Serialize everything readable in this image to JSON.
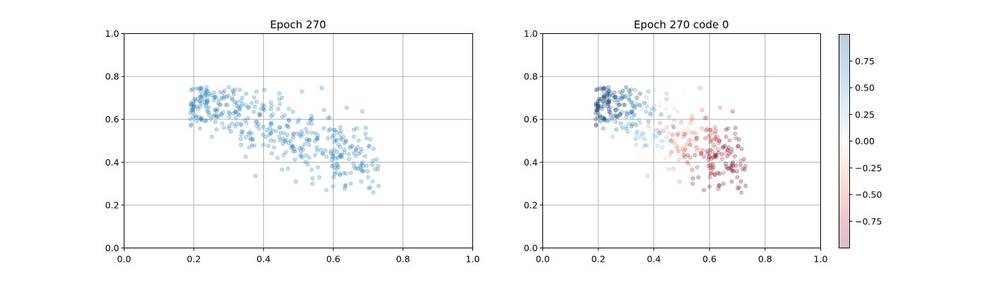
{
  "chart_data": [
    {
      "type": "scatter",
      "title": "Epoch 270",
      "xlim": [
        0,
        1
      ],
      "ylim": [
        0,
        1
      ],
      "xticks": [
        "0.0",
        "0.2",
        "0.4",
        "0.6",
        "0.8",
        "1.0"
      ],
      "yticks": [
        "0.0",
        "0.2",
        "0.4",
        "0.6",
        "0.8",
        "1.0"
      ],
      "grid": true,
      "marker_color": "#1f77b4",
      "marker_alpha": 0.25,
      "points_count": 400,
      "cluster_description_points": [
        [
          0.19,
          0.63
        ],
        [
          0.21,
          0.66
        ],
        [
          0.22,
          0.6
        ],
        [
          0.24,
          0.69
        ],
        [
          0.26,
          0.62
        ],
        [
          0.28,
          0.7
        ],
        [
          0.3,
          0.75
        ],
        [
          0.31,
          0.58
        ],
        [
          0.33,
          0.65
        ],
        [
          0.35,
          0.72
        ],
        [
          0.36,
          0.54
        ],
        [
          0.38,
          0.73
        ],
        [
          0.4,
          0.48
        ],
        [
          0.41,
          0.55
        ],
        [
          0.43,
          0.47
        ],
        [
          0.44,
          0.42
        ],
        [
          0.46,
          0.5
        ],
        [
          0.47,
          0.37
        ],
        [
          0.49,
          0.45
        ],
        [
          0.51,
          0.73
        ],
        [
          0.52,
          0.4
        ],
        [
          0.54,
          0.3
        ],
        [
          0.56,
          0.33
        ],
        [
          0.58,
          0.27
        ],
        [
          0.6,
          0.44
        ],
        [
          0.62,
          0.43
        ],
        [
          0.63,
          0.35
        ],
        [
          0.65,
          0.3
        ],
        [
          0.67,
          0.37
        ],
        [
          0.68,
          0.31
        ],
        [
          0.7,
          0.33
        ],
        [
          0.73,
          0.29
        ]
      ]
    },
    {
      "type": "scatter",
      "title": "Epoch 270 code 0",
      "xlim": [
        0,
        1
      ],
      "ylim": [
        0,
        1
      ],
      "xticks": [
        "0.0",
        "0.2",
        "0.4",
        "0.6",
        "0.8",
        "1.0"
      ],
      "yticks": [
        "0.0",
        "0.2",
        "0.4",
        "0.6",
        "0.8",
        "1.0"
      ],
      "grid": true,
      "colormap": "RdBu",
      "marker_alpha": 0.25,
      "colorbar": {
        "range": [
          -1,
          1
        ],
        "ticks": [
          "0.75",
          "0.50",
          "0.25",
          "0.00",
          "−0.25",
          "−0.50",
          "−0.75"
        ],
        "tick_values": [
          0.75,
          0.5,
          0.25,
          0.0,
          -0.25,
          -0.5,
          -0.75
        ],
        "colors": {
          "low": "#b2182b",
          "mid": "#f7f7f7",
          "high": "#2166ac"
        }
      }
    }
  ]
}
